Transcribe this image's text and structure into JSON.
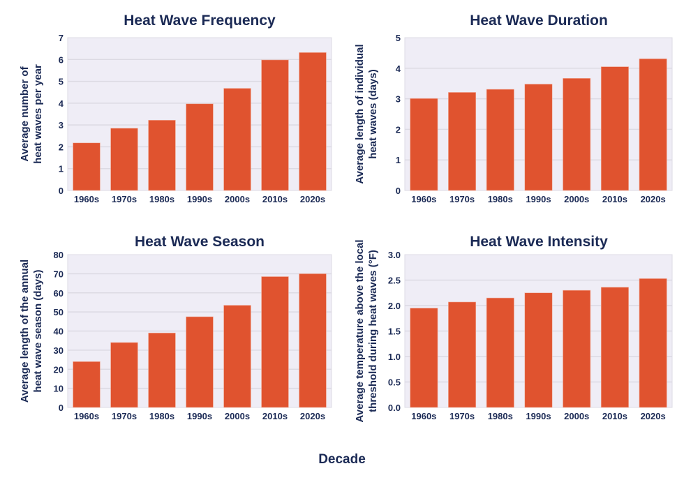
{
  "colors": {
    "bar": "#e0532f",
    "plot_background": "#efedf6",
    "gridline": "#dcdae3",
    "text": "#1b2a55"
  },
  "xlabel": "Decade",
  "chart_data": [
    {
      "type": "bar",
      "title": "Heat Wave Frequency",
      "ylabel": [
        "Average number of",
        "heat waves per year"
      ],
      "categories": [
        "1960s",
        "1970s",
        "1980s",
        "1990s",
        "2000s",
        "2010s",
        "2020s"
      ],
      "values": [
        2.18,
        2.85,
        3.22,
        3.97,
        4.68,
        5.98,
        6.32
      ],
      "ylim": [
        0,
        7
      ],
      "yticks": [
        "0",
        "1",
        "2",
        "3",
        "4",
        "5",
        "6",
        "7"
      ],
      "grid": true
    },
    {
      "type": "bar",
      "title": "Heat Wave Duration",
      "ylabel": [
        "Average length of individual",
        "heat waves (days)"
      ],
      "categories": [
        "1960s",
        "1970s",
        "1980s",
        "1990s",
        "2000s",
        "2010s",
        "2020s"
      ],
      "values": [
        3.01,
        3.21,
        3.31,
        3.48,
        3.67,
        4.05,
        4.31
      ],
      "ylim": [
        0,
        5
      ],
      "yticks": [
        "0",
        "1",
        "2",
        "3",
        "4",
        "5"
      ],
      "grid": true
    },
    {
      "type": "bar",
      "title": "Heat Wave Season",
      "ylabel": [
        "Average length of the annual",
        "heat wave season (days)"
      ],
      "categories": [
        "1960s",
        "1970s",
        "1980s",
        "1990s",
        "2000s",
        "2010s",
        "2020s"
      ],
      "values": [
        24,
        34,
        39,
        47.5,
        53.5,
        68.5,
        70
      ],
      "ylim": [
        0,
        80
      ],
      "yticks": [
        "0",
        "10",
        "20",
        "30",
        "40",
        "50",
        "60",
        "70",
        "80"
      ],
      "grid": true
    },
    {
      "type": "bar",
      "title": "Heat Wave Intensity",
      "ylabel": [
        "Average temperature above the local",
        "threshold during heat waves (°F)"
      ],
      "categories": [
        "1960s",
        "1970s",
        "1980s",
        "1990s",
        "2000s",
        "2010s",
        "2020s"
      ],
      "values": [
        1.95,
        2.07,
        2.15,
        2.25,
        2.3,
        2.36,
        2.53
      ],
      "ylim": [
        0,
        3
      ],
      "yticks": [
        "0.0",
        "0.5",
        "1.0",
        "1.5",
        "2.0",
        "2.5",
        "3.0"
      ],
      "grid": true
    }
  ]
}
